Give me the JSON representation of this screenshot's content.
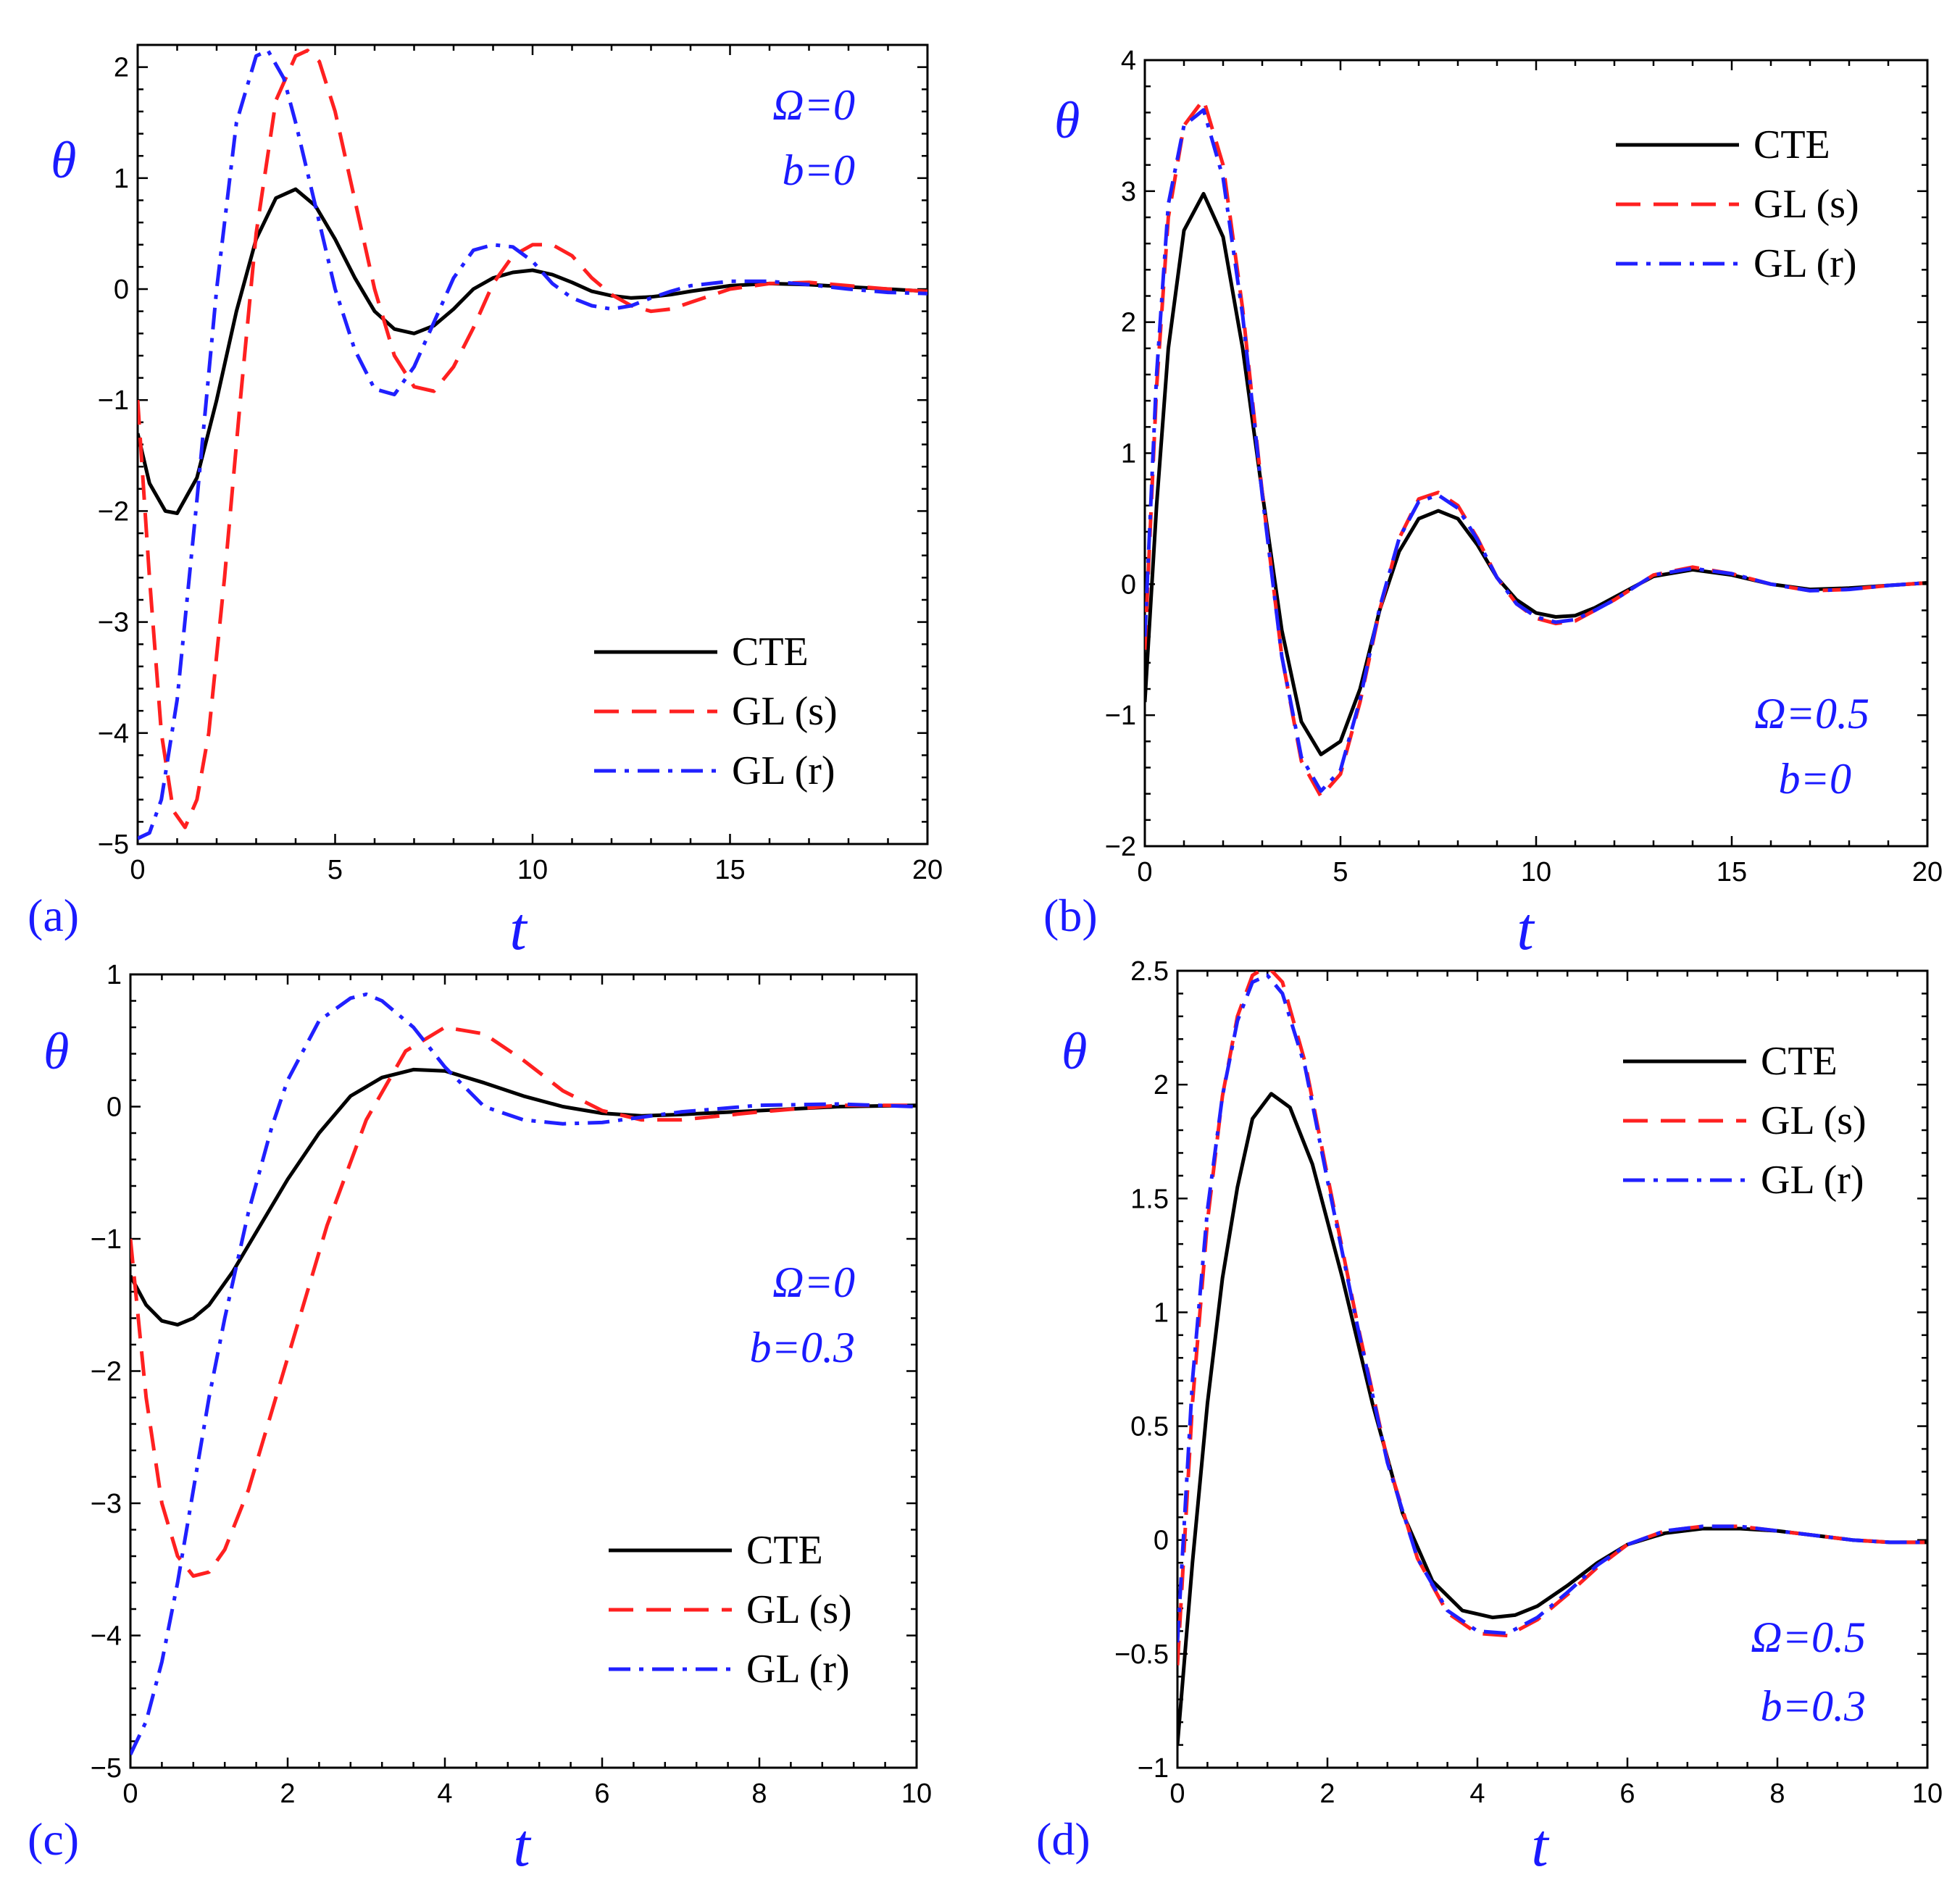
{
  "chart_data": [
    {
      "type": "line",
      "panel_label": "(a)",
      "xlabel": "t",
      "ylabel": "θ",
      "xlim": [
        0,
        20
      ],
      "ylim": [
        -5,
        2.2
      ],
      "xticks": [
        0,
        5,
        10,
        15,
        20
      ],
      "xtick_labels": [
        "0",
        "5",
        "10",
        "15",
        "20"
      ],
      "yticks": [
        -5,
        -4,
        -3,
        -2,
        -1,
        0,
        1,
        2
      ],
      "ytick_labels": [
        "−5",
        "−4",
        "−3",
        "−2",
        "−1",
        "0",
        "1",
        "2"
      ],
      "annotation": [
        "Ω=0",
        "b=0"
      ],
      "legend": [
        "CTE",
        "GL (s)",
        "GL (r)"
      ],
      "legend_position": "bottom-right",
      "series": [
        {
          "name": "CTE",
          "color": "#000000",
          "dash": "solid",
          "x": [
            0,
            0.3,
            0.7,
            1.0,
            1.5,
            2.0,
            2.5,
            3.0,
            3.5,
            4.0,
            4.5,
            5.0,
            5.5,
            6.0,
            6.5,
            7.0,
            7.5,
            8.0,
            8.5,
            9.0,
            9.5,
            10.0,
            10.5,
            11.0,
            11.5,
            12.0,
            12.5,
            13.0,
            13.5,
            14.0,
            15.0,
            16.0,
            17.0,
            18.0,
            19.0,
            20.0
          ],
          "y": [
            -1.3,
            -1.75,
            -2.0,
            -2.02,
            -1.7,
            -1.0,
            -0.2,
            0.45,
            0.82,
            0.9,
            0.75,
            0.45,
            0.1,
            -0.2,
            -0.36,
            -0.4,
            -0.33,
            -0.18,
            0.0,
            0.1,
            0.15,
            0.17,
            0.13,
            0.06,
            -0.02,
            -0.06,
            -0.08,
            -0.07,
            -0.05,
            -0.02,
            0.03,
            0.05,
            0.04,
            0.02,
            0.0,
            -0.02
          ]
        },
        {
          "name": "GL (s)",
          "color": "#ff2020",
          "dash": "dash",
          "x": [
            0,
            0.3,
            0.6,
            0.9,
            1.2,
            1.5,
            1.8,
            2.2,
            2.6,
            3.0,
            3.5,
            4.0,
            4.3,
            4.6,
            5.0,
            5.5,
            6.0,
            6.5,
            7.0,
            7.5,
            8.0,
            8.5,
            9.0,
            9.5,
            10.0,
            10.5,
            11.0,
            11.5,
            12.0,
            12.5,
            13.0,
            13.5,
            14.0,
            15.0,
            16.0,
            17.0,
            18.0,
            19.0,
            20.0
          ],
          "y": [
            -1.0,
            -2.6,
            -4.0,
            -4.7,
            -4.85,
            -4.6,
            -4.0,
            -2.6,
            -1.0,
            0.5,
            1.7,
            2.1,
            2.15,
            2.05,
            1.6,
            0.8,
            0.0,
            -0.6,
            -0.88,
            -0.92,
            -0.7,
            -0.35,
            0.05,
            0.3,
            0.4,
            0.4,
            0.3,
            0.1,
            -0.05,
            -0.15,
            -0.2,
            -0.18,
            -0.12,
            0.0,
            0.05,
            0.06,
            0.03,
            0.0,
            -0.02
          ]
        },
        {
          "name": "GL (r)",
          "color": "#2020ff",
          "dash": "dashdot",
          "x": [
            0,
            0.3,
            0.6,
            1.0,
            1.5,
            2.0,
            2.5,
            3.0,
            3.3,
            3.7,
            4.0,
            4.5,
            5.0,
            5.5,
            6.0,
            6.5,
            7.0,
            7.5,
            8.0,
            8.5,
            9.0,
            9.5,
            10.0,
            10.5,
            11.0,
            11.5,
            12.0,
            12.5,
            13.0,
            13.5,
            14.0,
            15.0,
            16.0,
            17.0,
            18.0,
            19.0,
            20.0
          ],
          "y": [
            -4.95,
            -4.9,
            -4.6,
            -3.7,
            -1.9,
            0.0,
            1.5,
            2.1,
            2.15,
            1.9,
            1.5,
            0.75,
            0.0,
            -0.55,
            -0.9,
            -0.95,
            -0.7,
            -0.3,
            0.1,
            0.35,
            0.4,
            0.38,
            0.25,
            0.05,
            -0.08,
            -0.15,
            -0.18,
            -0.15,
            -0.08,
            -0.02,
            0.03,
            0.07,
            0.07,
            0.04,
            0.0,
            -0.03,
            -0.04
          ]
        }
      ]
    },
    {
      "type": "line",
      "panel_label": "(b)",
      "xlabel": "t",
      "ylabel": "θ",
      "xlim": [
        0,
        20
      ],
      "ylim": [
        -2,
        4
      ],
      "xticks": [
        0,
        5,
        10,
        15,
        20
      ],
      "xtick_labels": [
        "0",
        "5",
        "10",
        "15",
        "20"
      ],
      "yticks": [
        -2,
        -1,
        0,
        1,
        2,
        3,
        4
      ],
      "ytick_labels": [
        "−2",
        "−1",
        "0",
        "1",
        "2",
        "3",
        "4"
      ],
      "annotation": [
        "Ω=0.5",
        "b=0"
      ],
      "legend": [
        "CTE",
        "GL (s)",
        "GL (r)"
      ],
      "legend_position": "top-right",
      "series": [
        {
          "name": "CTE",
          "color": "#000000",
          "dash": "solid",
          "x": [
            0,
            0.3,
            0.6,
            1.0,
            1.5,
            2.0,
            2.5,
            3.0,
            3.5,
            4.0,
            4.5,
            5.0,
            5.5,
            6.0,
            6.5,
            7.0,
            7.5,
            8.0,
            8.5,
            9.0,
            9.5,
            10.0,
            10.5,
            11.0,
            11.5,
            12.0,
            13.0,
            14.0,
            15.0,
            16.0,
            17.0,
            18.0,
            19.0,
            20.0
          ],
          "y": [
            -0.9,
            0.6,
            1.8,
            2.7,
            2.98,
            2.65,
            1.8,
            0.7,
            -0.35,
            -1.05,
            -1.3,
            -1.2,
            -0.8,
            -0.2,
            0.25,
            0.5,
            0.56,
            0.5,
            0.3,
            0.05,
            -0.12,
            -0.22,
            -0.25,
            -0.24,
            -0.18,
            -0.1,
            0.06,
            0.11,
            0.07,
            0.0,
            -0.04,
            -0.03,
            -0.01,
            0.01
          ]
        },
        {
          "name": "GL (s)",
          "color": "#ff2020",
          "dash": "dash",
          "x": [
            0,
            0.3,
            0.6,
            1.0,
            1.5,
            2.0,
            2.5,
            3.0,
            3.5,
            4.0,
            4.5,
            5.0,
            5.5,
            6.0,
            6.5,
            7.0,
            7.5,
            8.0,
            8.5,
            9.0,
            9.5,
            10.0,
            10.5,
            11.0,
            11.5,
            12.0,
            13.0,
            14.0,
            15.0,
            16.0,
            17.0,
            18.0,
            19.0,
            20.0
          ],
          "y": [
            -0.5,
            1.5,
            2.8,
            3.5,
            3.7,
            3.2,
            2.1,
            0.7,
            -0.55,
            -1.35,
            -1.62,
            -1.45,
            -0.9,
            -0.2,
            0.35,
            0.65,
            0.7,
            0.6,
            0.35,
            0.05,
            -0.15,
            -0.26,
            -0.3,
            -0.28,
            -0.2,
            -0.12,
            0.07,
            0.13,
            0.08,
            0.0,
            -0.05,
            -0.04,
            -0.01,
            0.01
          ]
        },
        {
          "name": "GL (r)",
          "color": "#2020ff",
          "dash": "dashdot",
          "x": [
            0,
            0.3,
            0.6,
            1.0,
            1.5,
            2.0,
            2.5,
            3.0,
            3.5,
            4.0,
            4.5,
            5.0,
            5.5,
            6.0,
            6.5,
            7.0,
            7.5,
            8.0,
            8.5,
            9.0,
            9.5,
            10.0,
            10.5,
            11.0,
            11.5,
            12.0,
            13.0,
            14.0,
            15.0,
            16.0,
            17.0,
            18.0,
            19.0,
            20.0
          ],
          "y": [
            -0.4,
            1.6,
            2.9,
            3.5,
            3.62,
            3.1,
            2.05,
            0.68,
            -0.55,
            -1.32,
            -1.58,
            -1.42,
            -0.88,
            -0.18,
            0.35,
            0.63,
            0.68,
            0.58,
            0.34,
            0.05,
            -0.15,
            -0.25,
            -0.29,
            -0.27,
            -0.2,
            -0.12,
            0.07,
            0.12,
            0.08,
            0.0,
            -0.05,
            -0.04,
            -0.01,
            0.01
          ]
        }
      ]
    },
    {
      "type": "line",
      "panel_label": "(c)",
      "xlabel": "t",
      "ylabel": "θ",
      "xlim": [
        0,
        10
      ],
      "ylim": [
        -5,
        1
      ],
      "xticks": [
        0,
        2,
        4,
        6,
        8,
        10
      ],
      "xtick_labels": [
        "0",
        "2",
        "4",
        "6",
        "8",
        "10"
      ],
      "yticks": [
        -5,
        -4,
        -3,
        -2,
        -1,
        0,
        1
      ],
      "ytick_labels": [
        "−5",
        "−4",
        "−3",
        "−2",
        "−1",
        "0",
        "1"
      ],
      "annotation": [
        "Ω=0",
        "b=0.3"
      ],
      "legend": [
        "CTE",
        "GL (s)",
        "GL (r)"
      ],
      "legend_position": "bottom-right",
      "series": [
        {
          "name": "CTE",
          "color": "#000000",
          "dash": "solid",
          "x": [
            0,
            0.2,
            0.4,
            0.6,
            0.8,
            1.0,
            1.3,
            1.6,
            2.0,
            2.4,
            2.8,
            3.2,
            3.6,
            4.0,
            4.5,
            5.0,
            5.5,
            6.0,
            6.5,
            7.0,
            8.0,
            9.0,
            10.0
          ],
          "y": [
            -1.28,
            -1.5,
            -1.62,
            -1.65,
            -1.6,
            -1.5,
            -1.25,
            -0.95,
            -0.55,
            -0.2,
            0.08,
            0.22,
            0.28,
            0.27,
            0.18,
            0.08,
            0.0,
            -0.05,
            -0.07,
            -0.06,
            -0.03,
            0.0,
            0.01
          ]
        },
        {
          "name": "GL (s)",
          "color": "#ff2020",
          "dash": "dash",
          "x": [
            0,
            0.2,
            0.4,
            0.6,
            0.8,
            1.0,
            1.2,
            1.5,
            2.0,
            2.5,
            3.0,
            3.5,
            4.0,
            4.5,
            5.0,
            5.5,
            6.0,
            6.5,
            7.0,
            8.0,
            9.0,
            10.0
          ],
          "y": [
            -1.0,
            -2.2,
            -3.0,
            -3.4,
            -3.55,
            -3.52,
            -3.35,
            -2.9,
            -1.9,
            -0.9,
            -0.1,
            0.42,
            0.6,
            0.55,
            0.35,
            0.12,
            -0.03,
            -0.1,
            -0.1,
            -0.04,
            0.01,
            0.01
          ]
        },
        {
          "name": "GL (r)",
          "color": "#2020ff",
          "dash": "dashdot",
          "x": [
            0,
            0.2,
            0.4,
            0.6,
            0.8,
            1.0,
            1.2,
            1.5,
            1.8,
            2.0,
            2.4,
            2.8,
            3.0,
            3.2,
            3.6,
            4.0,
            4.5,
            5.0,
            5.5,
            6.0,
            6.5,
            7.0,
            8.0,
            9.0,
            10.0
          ],
          "y": [
            -4.9,
            -4.65,
            -4.2,
            -3.6,
            -2.9,
            -2.2,
            -1.6,
            -0.8,
            -0.15,
            0.2,
            0.65,
            0.82,
            0.85,
            0.8,
            0.6,
            0.3,
            0.0,
            -0.1,
            -0.13,
            -0.12,
            -0.08,
            -0.04,
            0.01,
            0.02,
            0.0
          ]
        }
      ]
    },
    {
      "type": "line",
      "panel_label": "(d)",
      "xlabel": "t",
      "ylabel": "θ",
      "xlim": [
        0,
        10
      ],
      "ylim": [
        -1,
        2.5
      ],
      "xticks": [
        0,
        2,
        4,
        6,
        8,
        10
      ],
      "xtick_labels": [
        "0",
        "2",
        "4",
        "6",
        "8",
        "10"
      ],
      "yticks": [
        -1,
        -0.5,
        0,
        0.5,
        1,
        1.5,
        2,
        2.5
      ],
      "ytick_labels": [
        "−1",
        "−0.5",
        "0",
        "0.5",
        "1",
        "1.5",
        "2",
        "2.5"
      ],
      "annotation": [
        "Ω=0.5",
        "b=0.3"
      ],
      "legend": [
        "CTE",
        "GL (s)",
        "GL (r)"
      ],
      "legend_position": "top-right",
      "series": [
        {
          "name": "CTE",
          "color": "#000000",
          "dash": "solid",
          "x": [
            0,
            0.2,
            0.4,
            0.6,
            0.8,
            1.0,
            1.25,
            1.5,
            1.8,
            2.2,
            2.6,
            3.0,
            3.4,
            3.8,
            4.2,
            4.5,
            4.8,
            5.2,
            5.6,
            6.0,
            6.5,
            7.0,
            7.5,
            8.0,
            8.5,
            9.0,
            9.5,
            10.0
          ],
          "y": [
            -0.9,
            -0.1,
            0.6,
            1.15,
            1.55,
            1.85,
            1.96,
            1.9,
            1.65,
            1.15,
            0.6,
            0.12,
            -0.18,
            -0.31,
            -0.34,
            -0.33,
            -0.29,
            -0.2,
            -0.1,
            -0.02,
            0.03,
            0.05,
            0.05,
            0.04,
            0.02,
            0.0,
            -0.01,
            -0.01
          ]
        },
        {
          "name": "GL (s)",
          "color": "#ff2020",
          "dash": "dash",
          "x": [
            0,
            0.2,
            0.4,
            0.6,
            0.8,
            1.0,
            1.2,
            1.4,
            1.7,
            2.0,
            2.4,
            2.8,
            3.2,
            3.6,
            4.0,
            4.4,
            4.8,
            5.2,
            5.6,
            6.0,
            6.5,
            7.0,
            7.5,
            8.0,
            8.5,
            9.0,
            9.5,
            10.0
          ],
          "y": [
            -0.55,
            0.6,
            1.4,
            1.95,
            2.3,
            2.48,
            2.52,
            2.45,
            2.1,
            1.6,
            0.95,
            0.35,
            -0.08,
            -0.32,
            -0.41,
            -0.42,
            -0.35,
            -0.24,
            -0.12,
            -0.02,
            0.04,
            0.06,
            0.06,
            0.04,
            0.02,
            0.0,
            -0.01,
            -0.01
          ]
        },
        {
          "name": "GL (r)",
          "color": "#2020ff",
          "dash": "dashdot",
          "x": [
            0,
            0.2,
            0.4,
            0.6,
            0.8,
            1.0,
            1.2,
            1.4,
            1.7,
            2.0,
            2.4,
            2.8,
            3.2,
            3.6,
            4.0,
            4.4,
            4.8,
            5.2,
            5.6,
            6.0,
            6.5,
            7.0,
            7.5,
            8.0,
            8.5,
            9.0,
            9.5,
            10.0
          ],
          "y": [
            -0.45,
            0.7,
            1.45,
            1.95,
            2.28,
            2.45,
            2.48,
            2.4,
            2.08,
            1.58,
            0.94,
            0.34,
            -0.08,
            -0.31,
            -0.4,
            -0.41,
            -0.34,
            -0.23,
            -0.11,
            -0.02,
            0.04,
            0.06,
            0.06,
            0.04,
            0.02,
            0.0,
            -0.01,
            -0.01
          ]
        }
      ]
    }
  ]
}
